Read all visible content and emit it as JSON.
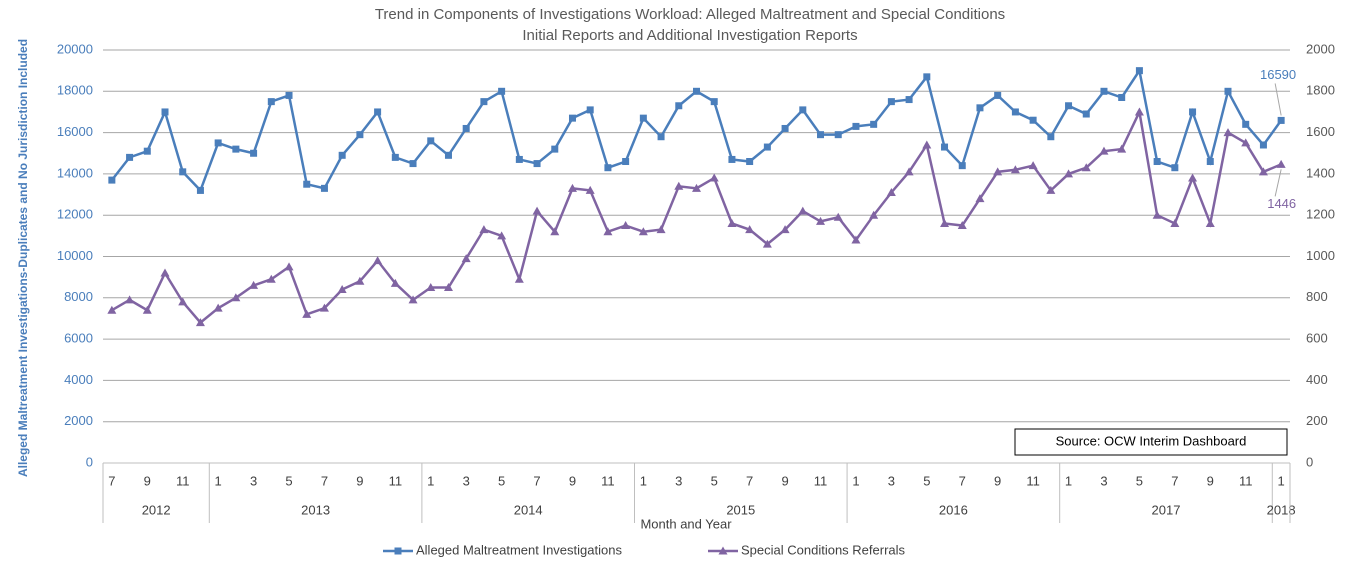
{
  "chart_data": {
    "type": "line",
    "title": "Trend in Components of Investigations Workload: Alleged Maltreatment and Special Conditions",
    "subtitle": "Initial Reports and Additional Investigation Reports",
    "ylabel": "Alleged Maltreatment Investigations-Duplicates and No Jurisdiction Included",
    "xlabel": "Month and Year",
    "annotation": "Source: OCW Interim Dashboard",
    "categories": [
      "7",
      null,
      "9",
      null,
      "11",
      null,
      "1",
      null,
      "3",
      null,
      "5",
      null,
      "7",
      null,
      "9",
      null,
      "11",
      null,
      "1",
      null,
      "3",
      null,
      "5",
      null,
      "7",
      null,
      "9",
      null,
      "11",
      null,
      "1",
      null,
      "3",
      null,
      "5",
      null,
      "7",
      null,
      "9",
      null,
      "11",
      null,
      "1",
      null,
      "3",
      null,
      "5",
      null,
      "7",
      null,
      "9",
      null,
      "11",
      null,
      "1",
      null,
      "3",
      null,
      "5",
      null,
      "7",
      null,
      "9",
      null,
      "11",
      null,
      "1"
    ],
    "years": [
      "2012",
      "2013",
      "2014",
      "2015",
      "2016",
      "2017",
      "2018"
    ],
    "ylim": [
      0,
      20000
    ],
    "yticks": [
      0,
      2000,
      4000,
      6000,
      8000,
      10000,
      12000,
      14000,
      16000,
      18000,
      20000
    ],
    "y2lim": [
      0,
      2000
    ],
    "y2ticks": [
      0,
      200,
      400,
      600,
      800,
      1000,
      1200,
      1400,
      1600,
      1800,
      2000
    ],
    "grid": true,
    "legend": "bottom",
    "series": [
      {
        "name": "Alleged Maltreatment Investigations",
        "color": "#4a7ebb",
        "marker": "square",
        "values": [
          13700,
          14800,
          15100,
          17000,
          14100,
          13200,
          15500,
          15200,
          15000,
          17500,
          17800,
          13500,
          13300,
          14900,
          15900,
          17000,
          14800,
          14500,
          15600,
          14900,
          16200,
          17500,
          18000,
          14700,
          14500,
          15200,
          16700,
          17100,
          14300,
          14600,
          16700,
          15800,
          17300,
          18000,
          17500,
          14700,
          14600,
          15300,
          16200,
          17100,
          15900,
          15900,
          16300,
          16400,
          17500,
          17600,
          18700,
          15300,
          14400,
          17200,
          17800,
          17000,
          16600,
          15800,
          17300,
          16900,
          18000,
          17700,
          19000,
          14600,
          14300,
          17000,
          14600,
          18000,
          16400,
          15400,
          16590
        ]
      },
      {
        "name": "Special Conditions Referrals",
        "color": "#8064a2",
        "marker": "triangle",
        "axis": "y2",
        "values": [
          740,
          790,
          740,
          920,
          780,
          680,
          750,
          800,
          860,
          890,
          950,
          720,
          750,
          840,
          880,
          980,
          870,
          790,
          850,
          850,
          990,
          1130,
          1100,
          890,
          1220,
          1120,
          1330,
          1320,
          1120,
          1150,
          1120,
          1130,
          1340,
          1330,
          1380,
          1160,
          1130,
          1060,
          1130,
          1220,
          1170,
          1190,
          1080,
          1200,
          1310,
          1410,
          1540,
          1160,
          1150,
          1280,
          1410,
          1420,
          1440,
          1320,
          1400,
          1430,
          1510,
          1520,
          1700,
          1200,
          1160,
          1380,
          1160,
          1600,
          1550,
          1410,
          1446
        ]
      }
    ]
  }
}
